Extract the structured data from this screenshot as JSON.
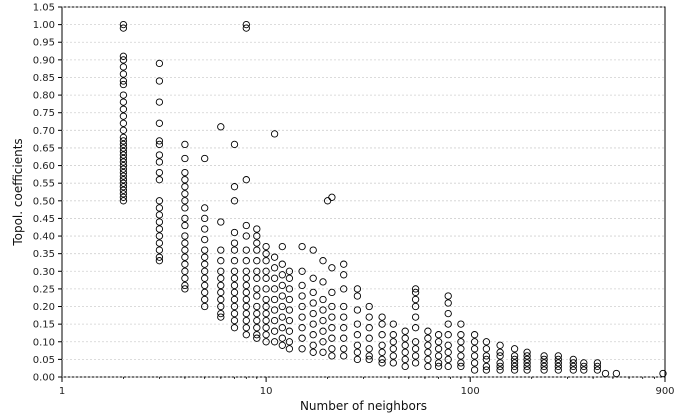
{
  "chart_data": {
    "type": "scatter",
    "title": "",
    "xlabel": "Number of neighbors",
    "ylabel": "Topol. coefficients",
    "x_scale": "log",
    "xlim": [
      1,
      900
    ],
    "ylim": [
      0,
      1.05
    ],
    "x_ticks": [
      {
        "value": 1,
        "label": "1"
      },
      {
        "value": 10,
        "label": "10"
      },
      {
        "value": 100,
        "label": "100"
      },
      {
        "value": 900,
        "label": "900"
      }
    ],
    "y_ticks": [
      "0.00",
      "0.05",
      "0.10",
      "0.15",
      "0.20",
      "0.25",
      "0.30",
      "0.35",
      "0.40",
      "0.45",
      "0.50",
      "0.55",
      "0.60",
      "0.65",
      "0.70",
      "0.75",
      "0.80",
      "0.85",
      "0.90",
      "0.95",
      "1.00",
      "1.05"
    ],
    "grid": {
      "horizontal": true,
      "vertical": false
    },
    "marker": "open-circle",
    "marker_color": "#000000",
    "note": "",
    "points": [
      [
        2,
        1.0
      ],
      [
        2,
        0.99
      ],
      [
        2,
        0.91
      ],
      [
        2,
        0.9
      ],
      [
        2,
        0.88
      ],
      [
        2,
        0.86
      ],
      [
        2,
        0.84
      ],
      [
        2,
        0.83
      ],
      [
        2,
        0.8
      ],
      [
        2,
        0.78
      ],
      [
        2,
        0.76
      ],
      [
        2,
        0.74
      ],
      [
        2,
        0.72
      ],
      [
        2,
        0.7
      ],
      [
        2,
        0.68
      ],
      [
        2,
        0.67
      ],
      [
        2,
        0.66
      ],
      [
        2,
        0.65
      ],
      [
        2,
        0.64
      ],
      [
        2,
        0.63
      ],
      [
        2,
        0.62
      ],
      [
        2,
        0.61
      ],
      [
        2,
        0.6
      ],
      [
        2,
        0.59
      ],
      [
        2,
        0.58
      ],
      [
        2,
        0.57
      ],
      [
        2,
        0.56
      ],
      [
        2,
        0.55
      ],
      [
        2,
        0.54
      ],
      [
        2,
        0.53
      ],
      [
        2,
        0.52
      ],
      [
        2,
        0.51
      ],
      [
        2,
        0.5
      ],
      [
        3,
        0.89
      ],
      [
        3,
        0.84
      ],
      [
        3,
        0.78
      ],
      [
        3,
        0.72
      ],
      [
        3,
        0.67
      ],
      [
        3,
        0.66
      ],
      [
        3,
        0.63
      ],
      [
        3,
        0.61
      ],
      [
        3,
        0.58
      ],
      [
        3,
        0.56
      ],
      [
        3,
        0.5
      ],
      [
        3,
        0.48
      ],
      [
        3,
        0.46
      ],
      [
        3,
        0.44
      ],
      [
        3,
        0.42
      ],
      [
        3,
        0.4
      ],
      [
        3,
        0.38
      ],
      [
        3,
        0.36
      ],
      [
        3,
        0.34
      ],
      [
        3,
        0.33
      ],
      [
        4,
        0.66
      ],
      [
        4,
        0.62
      ],
      [
        4,
        0.58
      ],
      [
        4,
        0.56
      ],
      [
        4,
        0.54
      ],
      [
        4,
        0.52
      ],
      [
        4,
        0.5
      ],
      [
        4,
        0.48
      ],
      [
        4,
        0.45
      ],
      [
        4,
        0.43
      ],
      [
        4,
        0.4
      ],
      [
        4,
        0.38
      ],
      [
        4,
        0.36
      ],
      [
        4,
        0.34
      ],
      [
        4,
        0.32
      ],
      [
        4,
        0.3
      ],
      [
        4,
        0.28
      ],
      [
        4,
        0.26
      ],
      [
        4,
        0.25
      ],
      [
        5,
        0.62
      ],
      [
        5,
        0.48
      ],
      [
        5,
        0.45
      ],
      [
        5,
        0.42
      ],
      [
        5,
        0.39
      ],
      [
        5,
        0.36
      ],
      [
        5,
        0.34
      ],
      [
        5,
        0.32
      ],
      [
        5,
        0.3
      ],
      [
        5,
        0.28
      ],
      [
        5,
        0.26
      ],
      [
        5,
        0.24
      ],
      [
        5,
        0.22
      ],
      [
        5,
        0.2
      ],
      [
        6,
        0.71
      ],
      [
        6,
        0.44
      ],
      [
        6,
        0.36
      ],
      [
        6,
        0.33
      ],
      [
        6,
        0.3
      ],
      [
        6,
        0.28
      ],
      [
        6,
        0.26
      ],
      [
        6,
        0.24
      ],
      [
        6,
        0.22
      ],
      [
        6,
        0.2
      ],
      [
        6,
        0.18
      ],
      [
        6,
        0.17
      ],
      [
        7,
        0.66
      ],
      [
        7,
        0.54
      ],
      [
        7,
        0.5
      ],
      [
        7,
        0.41
      ],
      [
        7,
        0.38
      ],
      [
        7,
        0.36
      ],
      [
        7,
        0.33
      ],
      [
        7,
        0.3
      ],
      [
        7,
        0.28
      ],
      [
        7,
        0.26
      ],
      [
        7,
        0.24
      ],
      [
        7,
        0.22
      ],
      [
        7,
        0.2
      ],
      [
        7,
        0.18
      ],
      [
        7,
        0.16
      ],
      [
        7,
        0.14
      ],
      [
        8,
        1.0
      ],
      [
        8,
        0.99
      ],
      [
        8,
        0.56
      ],
      [
        8,
        0.43
      ],
      [
        8,
        0.4
      ],
      [
        8,
        0.36
      ],
      [
        8,
        0.33
      ],
      [
        8,
        0.3
      ],
      [
        8,
        0.28
      ],
      [
        8,
        0.26
      ],
      [
        8,
        0.24
      ],
      [
        8,
        0.22
      ],
      [
        8,
        0.2
      ],
      [
        8,
        0.18
      ],
      [
        8,
        0.16
      ],
      [
        8,
        0.14
      ],
      [
        8,
        0.12
      ],
      [
        9,
        0.42
      ],
      [
        9,
        0.4
      ],
      [
        9,
        0.38
      ],
      [
        9,
        0.36
      ],
      [
        9,
        0.33
      ],
      [
        9,
        0.3
      ],
      [
        9,
        0.28
      ],
      [
        9,
        0.25
      ],
      [
        9,
        0.23
      ],
      [
        9,
        0.2
      ],
      [
        9,
        0.18
      ],
      [
        9,
        0.16
      ],
      [
        9,
        0.14
      ],
      [
        9,
        0.12
      ],
      [
        9,
        0.11
      ],
      [
        10,
        0.37
      ],
      [
        10,
        0.35
      ],
      [
        10,
        0.33
      ],
      [
        10,
        0.3
      ],
      [
        10,
        0.28
      ],
      [
        10,
        0.25
      ],
      [
        10,
        0.22
      ],
      [
        10,
        0.2
      ],
      [
        10,
        0.18
      ],
      [
        10,
        0.16
      ],
      [
        10,
        0.14
      ],
      [
        10,
        0.12
      ],
      [
        10,
        0.1
      ],
      [
        11,
        0.69
      ],
      [
        11,
        0.34
      ],
      [
        11,
        0.31
      ],
      [
        11,
        0.28
      ],
      [
        11,
        0.25
      ],
      [
        11,
        0.22
      ],
      [
        11,
        0.19
      ],
      [
        11,
        0.16
      ],
      [
        11,
        0.13
      ],
      [
        11,
        0.1
      ],
      [
        12,
        0.37
      ],
      [
        12,
        0.32
      ],
      [
        12,
        0.29
      ],
      [
        12,
        0.26
      ],
      [
        12,
        0.23
      ],
      [
        12,
        0.2
      ],
      [
        12,
        0.17
      ],
      [
        12,
        0.14
      ],
      [
        12,
        0.11
      ],
      [
        12,
        0.09
      ],
      [
        13,
        0.3
      ],
      [
        13,
        0.28
      ],
      [
        13,
        0.25
      ],
      [
        13,
        0.22
      ],
      [
        13,
        0.19
      ],
      [
        13,
        0.16
      ],
      [
        13,
        0.13
      ],
      [
        13,
        0.1
      ],
      [
        13,
        0.08
      ],
      [
        15,
        0.37
      ],
      [
        15,
        0.3
      ],
      [
        15,
        0.26
      ],
      [
        15,
        0.23
      ],
      [
        15,
        0.2
      ],
      [
        15,
        0.17
      ],
      [
        15,
        0.14
      ],
      [
        15,
        0.11
      ],
      [
        15,
        0.08
      ],
      [
        17,
        0.36
      ],
      [
        17,
        0.28
      ],
      [
        17,
        0.24
      ],
      [
        17,
        0.21
      ],
      [
        17,
        0.18
      ],
      [
        17,
        0.15
      ],
      [
        17,
        0.12
      ],
      [
        17,
        0.09
      ],
      [
        17,
        0.07
      ],
      [
        19,
        0.33
      ],
      [
        19,
        0.27
      ],
      [
        19,
        0.22
      ],
      [
        19,
        0.19
      ],
      [
        19,
        0.16
      ],
      [
        19,
        0.13
      ],
      [
        19,
        0.1
      ],
      [
        19,
        0.07
      ],
      [
        20,
        0.5
      ],
      [
        21,
        0.51
      ],
      [
        21,
        0.31
      ],
      [
        21,
        0.24
      ],
      [
        21,
        0.2
      ],
      [
        21,
        0.17
      ],
      [
        21,
        0.14
      ],
      [
        21,
        0.11
      ],
      [
        21,
        0.08
      ],
      [
        21,
        0.06
      ],
      [
        24,
        0.32
      ],
      [
        24,
        0.29
      ],
      [
        24,
        0.25
      ],
      [
        24,
        0.2
      ],
      [
        24,
        0.17
      ],
      [
        24,
        0.14
      ],
      [
        24,
        0.11
      ],
      [
        24,
        0.08
      ],
      [
        24,
        0.06
      ],
      [
        28,
        0.25
      ],
      [
        28,
        0.23
      ],
      [
        28,
        0.19
      ],
      [
        28,
        0.15
      ],
      [
        28,
        0.12
      ],
      [
        28,
        0.09
      ],
      [
        28,
        0.07
      ],
      [
        28,
        0.05
      ],
      [
        32,
        0.2
      ],
      [
        32,
        0.17
      ],
      [
        32,
        0.14
      ],
      [
        32,
        0.11
      ],
      [
        32,
        0.08
      ],
      [
        32,
        0.06
      ],
      [
        32,
        0.05
      ],
      [
        37,
        0.17
      ],
      [
        37,
        0.15
      ],
      [
        37,
        0.12
      ],
      [
        37,
        0.09
      ],
      [
        37,
        0.07
      ],
      [
        37,
        0.05
      ],
      [
        37,
        0.04
      ],
      [
        42,
        0.15
      ],
      [
        42,
        0.12
      ],
      [
        42,
        0.1
      ],
      [
        42,
        0.08
      ],
      [
        42,
        0.06
      ],
      [
        42,
        0.04
      ],
      [
        48,
        0.13
      ],
      [
        48,
        0.11
      ],
      [
        48,
        0.09
      ],
      [
        48,
        0.07
      ],
      [
        48,
        0.05
      ],
      [
        48,
        0.03
      ],
      [
        54,
        0.25
      ],
      [
        54,
        0.24
      ],
      [
        54,
        0.22
      ],
      [
        54,
        0.2
      ],
      [
        54,
        0.17
      ],
      [
        54,
        0.14
      ],
      [
        54,
        0.1
      ],
      [
        54,
        0.08
      ],
      [
        54,
        0.06
      ],
      [
        54,
        0.04
      ],
      [
        62,
        0.13
      ],
      [
        62,
        0.11
      ],
      [
        62,
        0.09
      ],
      [
        62,
        0.07
      ],
      [
        62,
        0.05
      ],
      [
        62,
        0.03
      ],
      [
        70,
        0.12
      ],
      [
        70,
        0.1
      ],
      [
        70,
        0.08
      ],
      [
        70,
        0.06
      ],
      [
        70,
        0.04
      ],
      [
        70,
        0.03
      ],
      [
        78,
        0.23
      ],
      [
        78,
        0.21
      ],
      [
        78,
        0.18
      ],
      [
        78,
        0.15
      ],
      [
        78,
        0.12
      ],
      [
        78,
        0.09
      ],
      [
        78,
        0.07
      ],
      [
        78,
        0.05
      ],
      [
        78,
        0.03
      ],
      [
        90,
        0.15
      ],
      [
        90,
        0.12
      ],
      [
        90,
        0.1
      ],
      [
        90,
        0.08
      ],
      [
        90,
        0.06
      ],
      [
        90,
        0.04
      ],
      [
        90,
        0.03
      ],
      [
        105,
        0.12
      ],
      [
        105,
        0.1
      ],
      [
        105,
        0.08
      ],
      [
        105,
        0.06
      ],
      [
        105,
        0.04
      ],
      [
        105,
        0.02
      ],
      [
        120,
        0.1
      ],
      [
        120,
        0.08
      ],
      [
        120,
        0.06
      ],
      [
        120,
        0.05
      ],
      [
        120,
        0.03
      ],
      [
        120,
        0.02
      ],
      [
        140,
        0.09
      ],
      [
        140,
        0.07
      ],
      [
        140,
        0.06
      ],
      [
        140,
        0.04
      ],
      [
        140,
        0.03
      ],
      [
        140,
        0.02
      ],
      [
        165,
        0.08
      ],
      [
        165,
        0.06
      ],
      [
        165,
        0.05
      ],
      [
        165,
        0.04
      ],
      [
        165,
        0.03
      ],
      [
        165,
        0.02
      ],
      [
        190,
        0.07
      ],
      [
        190,
        0.06
      ],
      [
        190,
        0.05
      ],
      [
        190,
        0.04
      ],
      [
        190,
        0.03
      ],
      [
        190,
        0.02
      ],
      [
        230,
        0.06
      ],
      [
        230,
        0.05
      ],
      [
        230,
        0.04
      ],
      [
        230,
        0.03
      ],
      [
        230,
        0.02
      ],
      [
        270,
        0.06
      ],
      [
        270,
        0.05
      ],
      [
        270,
        0.04
      ],
      [
        270,
        0.03
      ],
      [
        270,
        0.02
      ],
      [
        320,
        0.05
      ],
      [
        320,
        0.04
      ],
      [
        320,
        0.03
      ],
      [
        320,
        0.02
      ],
      [
        360,
        0.04
      ],
      [
        360,
        0.03
      ],
      [
        360,
        0.02
      ],
      [
        420,
        0.04
      ],
      [
        420,
        0.03
      ],
      [
        420,
        0.02
      ],
      [
        460,
        0.01
      ],
      [
        520,
        0.01
      ],
      [
        880,
        0.01
      ]
    ]
  }
}
